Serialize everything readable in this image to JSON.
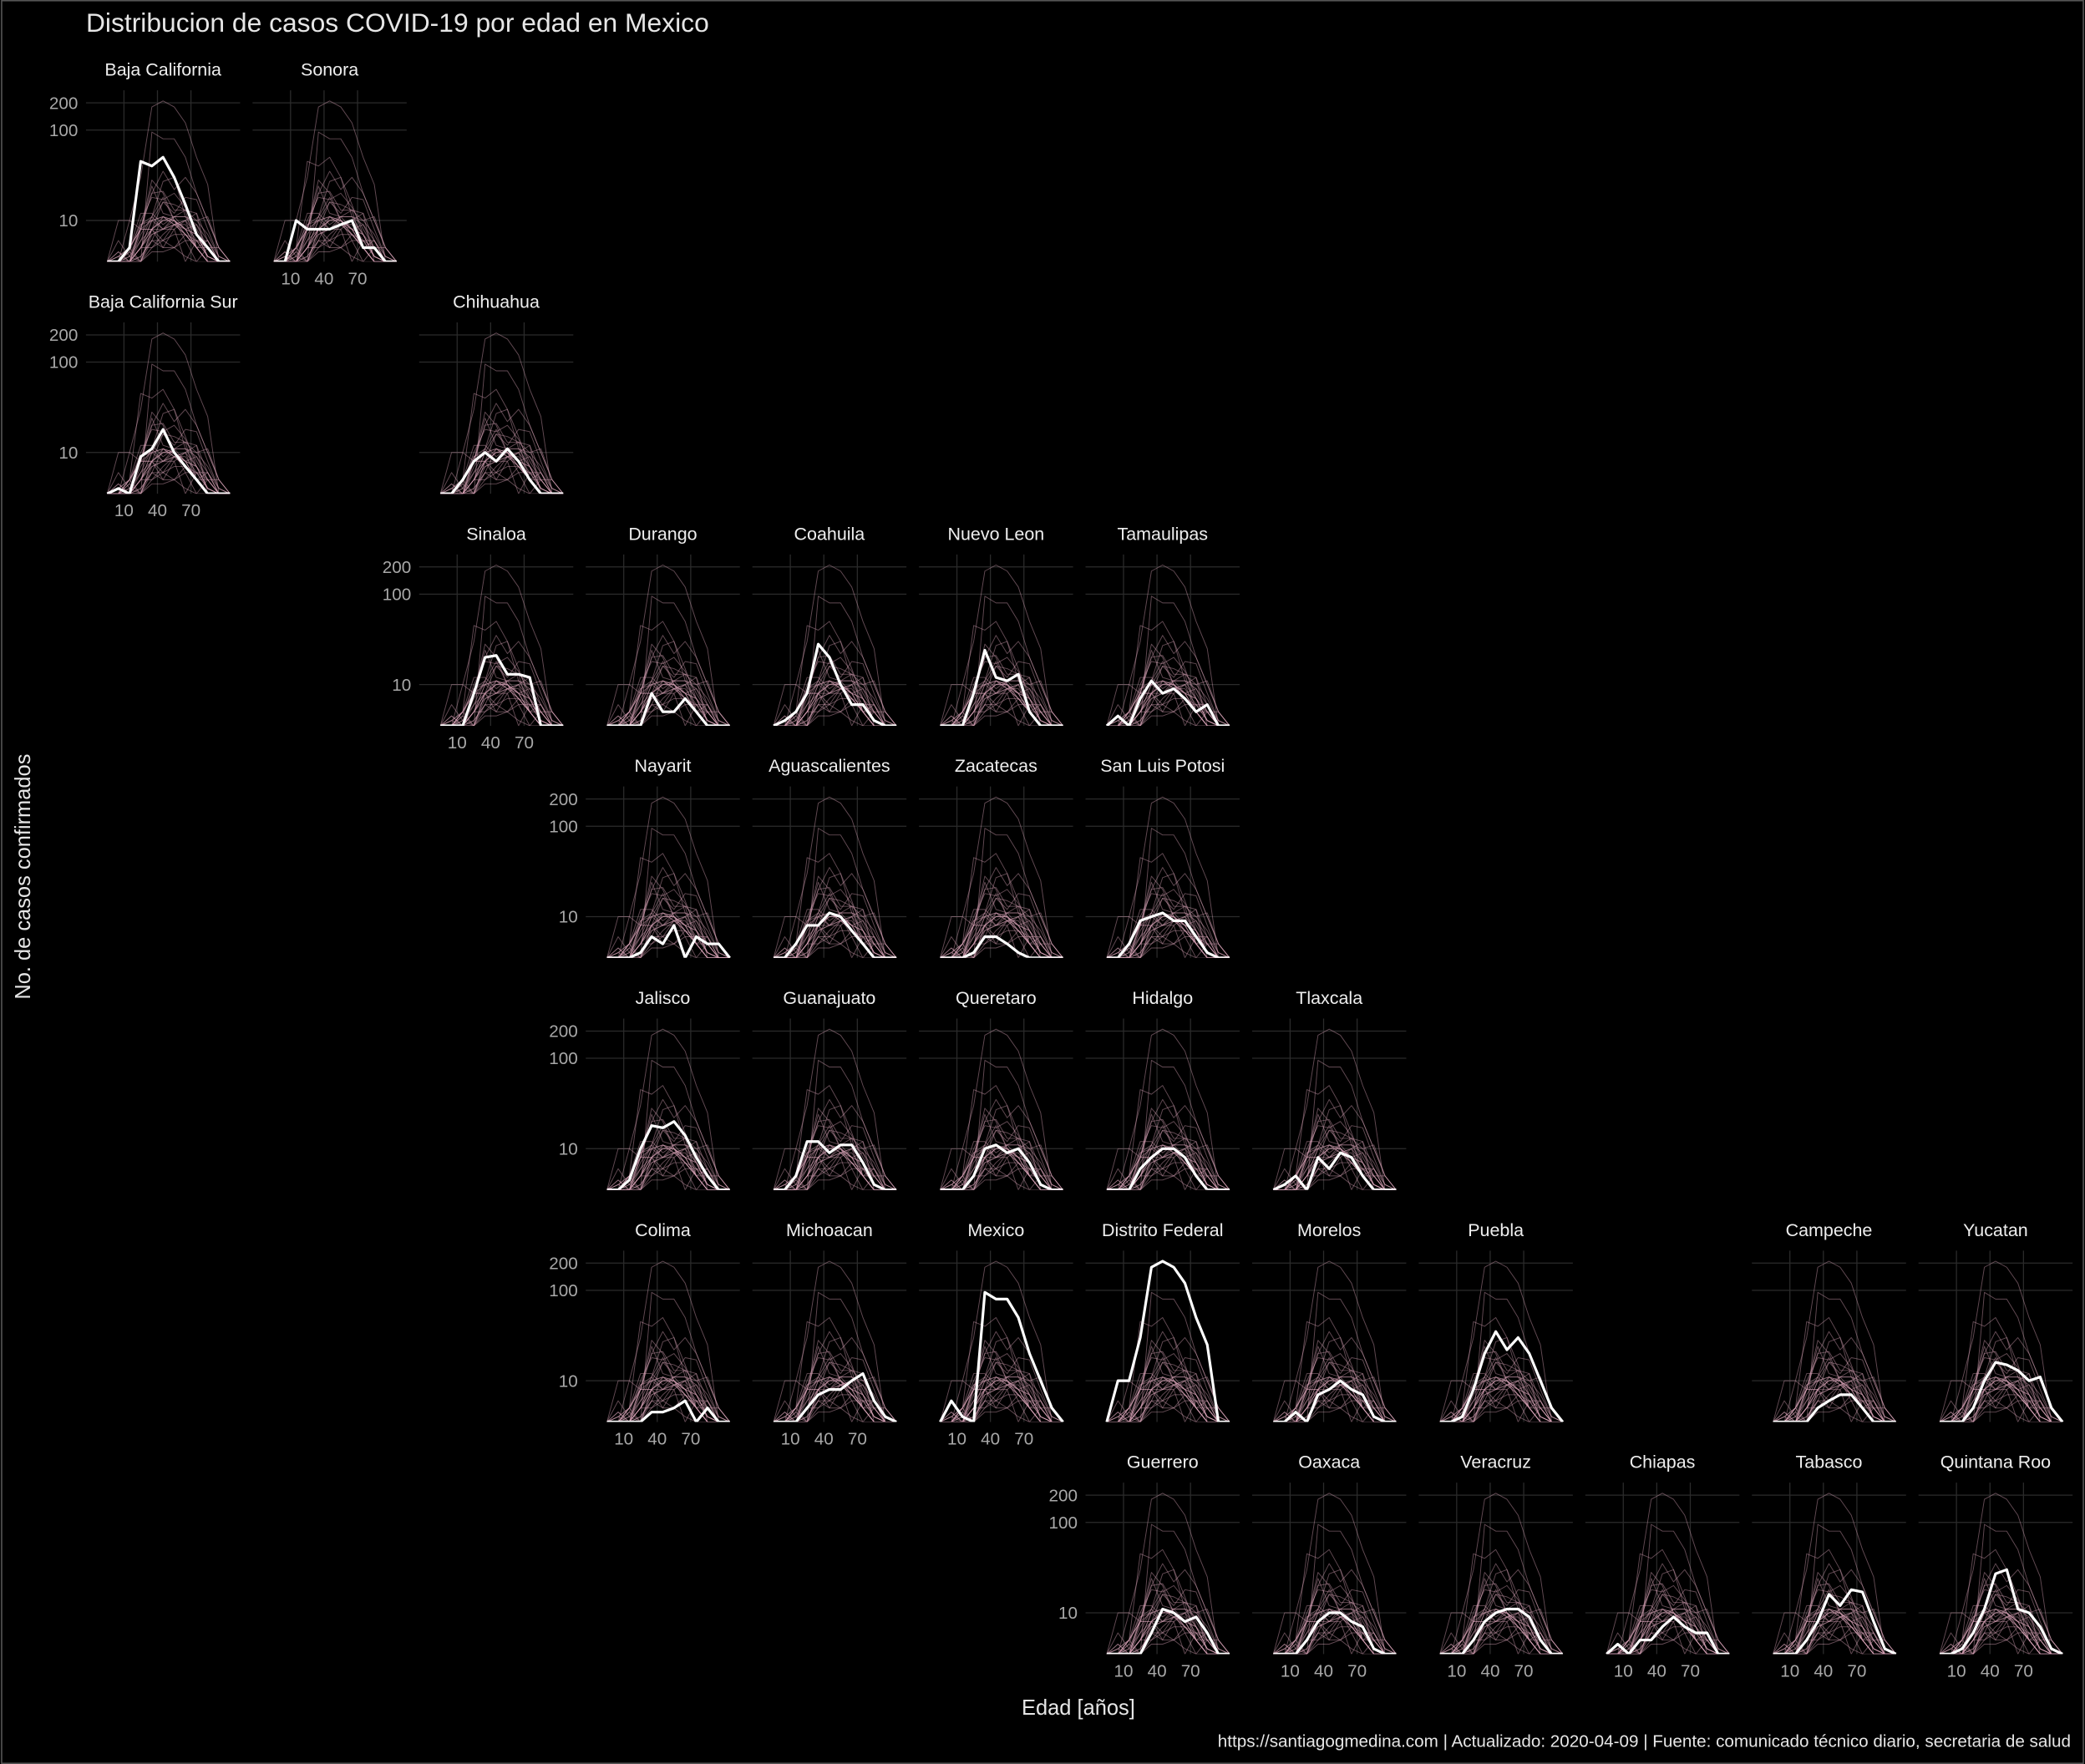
{
  "chart_data": {
    "type": "line",
    "title": "Distribucion de casos COVID-19 por edad en Mexico",
    "x_label": "Edad [años]",
    "y_label": "No. de casos confirmados",
    "caption": "https://santiagogmedina.com |  Actualizado:  2020-04-09  | Fuente: comunicado técnico diario, secretaria de salud",
    "x": [
      -5,
      5,
      15,
      25,
      35,
      45,
      55,
      65,
      75,
      85,
      95,
      105
    ],
    "xlim": [
      -24,
      114
    ],
    "xticks": [
      10,
      40,
      70
    ],
    "ylim": [
      3.5,
      275
    ],
    "yticks": [
      10,
      100,
      200
    ],
    "log_y": true,
    "grid": true,
    "context_color": "#d9a3b8",
    "series": [
      {
        "name": "Baja California",
        "color": "#ffffff",
        "values": [
          3.5,
          3.5,
          5,
          45,
          40,
          50,
          30,
          15,
          7,
          5,
          3.5,
          3.5
        ]
      },
      {
        "name": "Sonora",
        "color": "#ffffff",
        "values": [
          3.5,
          3.5,
          10,
          8,
          8,
          8,
          9,
          10,
          5,
          5,
          3.5,
          3.5
        ]
      },
      {
        "name": "Baja California Sur",
        "color": "#ffffff",
        "values": [
          3.5,
          4,
          3.5,
          9,
          11,
          18,
          10,
          7,
          5,
          3.5,
          3.5,
          3.5
        ]
      },
      {
        "name": "Chihuahua",
        "color": "#ffffff",
        "values": [
          3.5,
          3.5,
          5,
          8,
          10,
          8,
          11,
          8,
          5,
          3.5,
          3.5,
          3.5
        ]
      },
      {
        "name": "Sinaloa",
        "color": "#ffffff",
        "values": [
          3.5,
          3.5,
          3.5,
          8,
          20,
          21,
          13,
          13,
          12,
          3.5,
          3.5,
          3.5
        ]
      },
      {
        "name": "Durango",
        "color": "#ffffff",
        "values": [
          3.5,
          3.5,
          3.5,
          3.5,
          8,
          5,
          5,
          7,
          5,
          3.5,
          3.5,
          3.5
        ]
      },
      {
        "name": "Coahuila",
        "color": "#ffffff",
        "values": [
          3.5,
          4,
          5,
          8,
          28,
          20,
          10,
          6,
          6,
          4,
          3.5,
          3.5
        ]
      },
      {
        "name": "Nuevo Leon",
        "color": "#ffffff",
        "values": [
          3.5,
          3.5,
          3.5,
          8,
          24,
          12,
          11,
          13,
          5,
          3.5,
          3.5,
          3.5
        ]
      },
      {
        "name": "Tamaulipas",
        "color": "#ffffff",
        "values": [
          3.5,
          4.5,
          3.5,
          7,
          11,
          8,
          9,
          7,
          5,
          6,
          3.5,
          3.5
        ]
      },
      {
        "name": "Nayarit",
        "color": "#ffffff",
        "values": [
          3.5,
          3.5,
          3.5,
          4,
          6,
          5,
          8,
          3.5,
          6,
          5,
          5,
          3.5
        ]
      },
      {
        "name": "Aguascalientes",
        "color": "#ffffff",
        "values": [
          3.5,
          3.5,
          5,
          8,
          8,
          11,
          10,
          7,
          5,
          3.5,
          3.5,
          3.5
        ]
      },
      {
        "name": "Zacatecas",
        "color": "#ffffff",
        "values": [
          3.5,
          3.5,
          3.5,
          4,
          6,
          6,
          5,
          4,
          3.5,
          3.5,
          3.5,
          3.5
        ]
      },
      {
        "name": "San Luis Potosi",
        "color": "#ffffff",
        "values": [
          3.5,
          3.5,
          5,
          9,
          10,
          11,
          9,
          9,
          6,
          4,
          3.5,
          3.5
        ]
      },
      {
        "name": "Jalisco",
        "color": "#ffffff",
        "values": [
          3.5,
          3.5,
          4.5,
          10,
          18,
          17,
          20,
          14,
          8,
          5,
          3.5,
          3.5
        ]
      },
      {
        "name": "Guanajuato",
        "color": "#ffffff",
        "values": [
          3.5,
          3.5,
          5,
          12,
          12,
          9,
          11,
          11,
          7,
          4,
          3.5,
          3.5
        ]
      },
      {
        "name": "Queretaro",
        "color": "#ffffff",
        "values": [
          3.5,
          3.5,
          3.5,
          5,
          10,
          11,
          9,
          10,
          7,
          4,
          3.5,
          3.5
        ]
      },
      {
        "name": "Hidalgo",
        "color": "#ffffff",
        "values": [
          3.5,
          3.5,
          3.5,
          6,
          8,
          10,
          10,
          8,
          5,
          3.5,
          3.5,
          3.5
        ]
      },
      {
        "name": "Tlaxcala",
        "color": "#ffffff",
        "values": [
          3.5,
          4,
          5,
          3.5,
          8,
          6,
          9,
          8,
          5,
          3.5,
          3.5,
          3.5
        ]
      },
      {
        "name": "Colima",
        "color": "#ffffff",
        "values": [
          3.5,
          3.5,
          3.5,
          3.5,
          4.5,
          4.5,
          5,
          6,
          3.5,
          5,
          3.5,
          3.5
        ]
      },
      {
        "name": "Michoacan",
        "color": "#ffffff",
        "values": [
          3.5,
          3.5,
          3.5,
          5,
          7,
          8,
          8,
          10,
          12,
          6,
          4,
          3.5
        ]
      },
      {
        "name": "Mexico",
        "color": "#ffffff",
        "values": [
          3.5,
          6,
          4,
          3.5,
          95,
          80,
          80,
          50,
          20,
          10,
          5,
          3.5
        ]
      },
      {
        "name": "Distrito Federal",
        "color": "#ffffff",
        "values": [
          3.5,
          10,
          10,
          30,
          180,
          210,
          180,
          120,
          50,
          25,
          3.5,
          3.5
        ]
      },
      {
        "name": "Morelos",
        "color": "#ffffff",
        "values": [
          3.5,
          3.5,
          4.5,
          3.5,
          7,
          8,
          10,
          8,
          7,
          4,
          3.5,
          3.5
        ]
      },
      {
        "name": "Puebla",
        "color": "#ffffff",
        "values": [
          3.5,
          3.5,
          4,
          8,
          20,
          35,
          22,
          30,
          20,
          10,
          5,
          3.5
        ]
      },
      {
        "name": "Campeche",
        "color": "#ffffff",
        "values": [
          3.5,
          3.5,
          3.5,
          3.5,
          5,
          6,
          7,
          7,
          5,
          3.5,
          3.5,
          3.5
        ]
      },
      {
        "name": "Yucatan",
        "color": "#ffffff",
        "values": [
          3.5,
          3.5,
          3.5,
          5,
          10,
          16,
          15,
          13,
          10,
          11,
          5,
          3.5
        ]
      },
      {
        "name": "Guerrero",
        "color": "#ffffff",
        "values": [
          3.5,
          3.5,
          3.5,
          3.5,
          6,
          11,
          10,
          8,
          9,
          6,
          3.5,
          3.5
        ]
      },
      {
        "name": "Oaxaca",
        "color": "#ffffff",
        "values": [
          3.5,
          3.5,
          3.5,
          5,
          8,
          10,
          10,
          8,
          7,
          4,
          3.5,
          3.5
        ]
      },
      {
        "name": "Veracruz",
        "color": "#ffffff",
        "values": [
          3.5,
          3.5,
          3.5,
          5,
          8,
          10,
          11,
          11,
          9,
          5,
          3.5,
          3.5
        ]
      },
      {
        "name": "Chiapas",
        "color": "#ffffff",
        "values": [
          3.5,
          4.5,
          3.5,
          5,
          5,
          7,
          9,
          7,
          6,
          6,
          3.5,
          3.5
        ]
      },
      {
        "name": "Tabasco",
        "color": "#ffffff",
        "values": [
          3.5,
          3.5,
          3.5,
          5,
          8,
          16,
          12,
          18,
          17,
          8,
          4,
          3.5
        ]
      },
      {
        "name": "Quintana Roo",
        "color": "#ffffff",
        "values": [
          3.5,
          3.5,
          4,
          6,
          11,
          27,
          30,
          11,
          10,
          7,
          4,
          3.5
        ]
      }
    ]
  }
}
